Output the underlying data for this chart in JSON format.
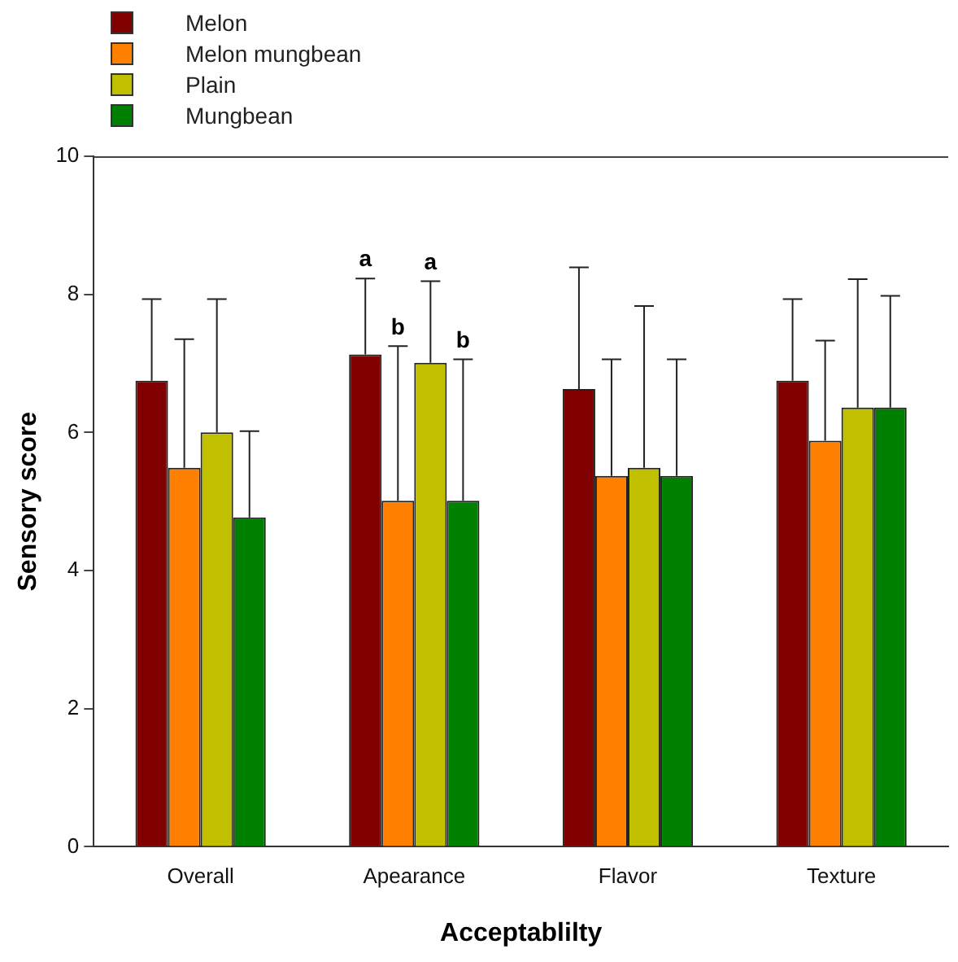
{
  "chart_data": {
    "type": "bar",
    "xlabel": "Acceptablilty",
    "ylabel": "Sensory score",
    "categories": [
      "Overall",
      "Apearance",
      "Flavor",
      "Texture"
    ],
    "series": [
      {
        "name": "Melon",
        "color": "#800000",
        "values": [
          6.75,
          7.13,
          6.63,
          6.75
        ],
        "errors": [
          1.18,
          1.1,
          1.76,
          1.18
        ]
      },
      {
        "name": "Melon mungbean",
        "color": "#ff8000",
        "values": [
          5.49,
          5.01,
          5.37,
          5.88
        ],
        "errors": [
          1.86,
          2.24,
          1.69,
          1.45
        ]
      },
      {
        "name": "Plain",
        "color": "#c0c000",
        "values": [
          6.0,
          7.01,
          5.49,
          6.36
        ],
        "errors": [
          1.93,
          1.18,
          2.34,
          1.86
        ]
      },
      {
        "name": "Mungbean",
        "color": "#008000",
        "values": [
          4.77,
          5.01,
          5.37,
          6.36
        ],
        "errors": [
          1.25,
          2.05,
          1.69,
          1.62
        ]
      }
    ],
    "annotations": [
      {
        "text": "a",
        "x": "Apearance",
        "y": 8.24
      },
      {
        "text": "b",
        "x": "Apearance",
        "y": 7.25
      },
      {
        "text": "a",
        "x": "Apearance",
        "y": 8.19
      },
      {
        "text": "b",
        "x": "Apearance",
        "y": 7.06
      }
    ],
    "ylim": [
      0,
      10
    ],
    "yticks": [
      0,
      2,
      4,
      6,
      8,
      10
    ],
    "grid": false,
    "legend": "top left"
  }
}
